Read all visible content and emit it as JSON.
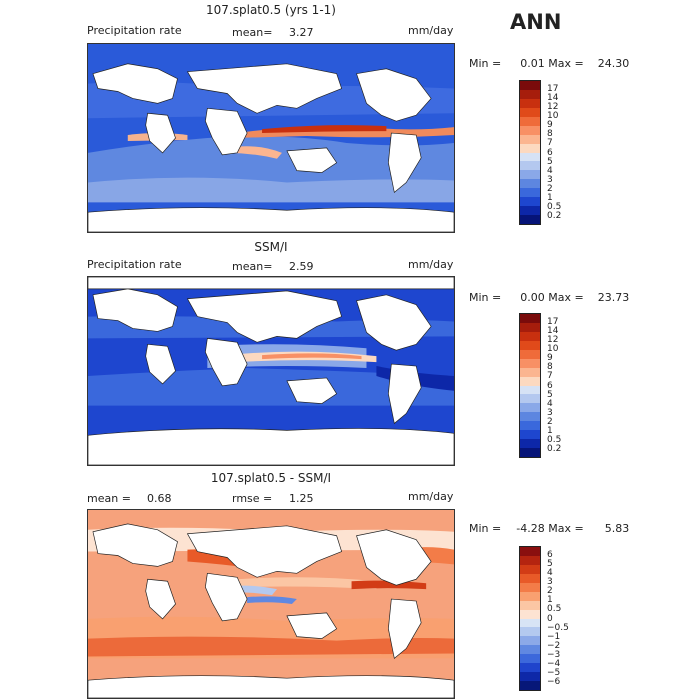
{
  "header": {
    "season": "ANN"
  },
  "panels": [
    {
      "title": "107.splat0.5 (yrs 1-1)",
      "left_label": "Precipitation rate",
      "mean_label": "mean=",
      "mean_value": "3.27",
      "units": "mm/day",
      "min_label": "Min =",
      "min_value": "0.01",
      "max_label": "Max =",
      "max_value": "24.30",
      "levels": [
        "17",
        "14",
        "12",
        "10",
        "9",
        "8",
        "7",
        "6",
        "5",
        "4",
        "3",
        "2",
        "1",
        "0.5",
        "0.2"
      ],
      "colors": [
        "#7a0b0b",
        "#a61d0c",
        "#c8300f",
        "#e04a1a",
        "#ef6b3a",
        "#f89065",
        "#fbb590",
        "#fcd9c0",
        "#d6e2f5",
        "#b4c8ef",
        "#8aa8e8",
        "#5d86e0",
        "#3a68dc",
        "#1e46cf",
        "#0d27a8",
        "#061478"
      ]
    },
    {
      "title": "SSM/I",
      "left_label": "Precipitation rate",
      "mean_label": "mean=",
      "mean_value": "2.59",
      "units": "mm/day",
      "min_label": "Min =",
      "min_value": "0.00",
      "max_label": "Max =",
      "max_value": "23.73",
      "levels": [
        "17",
        "14",
        "12",
        "10",
        "9",
        "8",
        "7",
        "6",
        "5",
        "4",
        "3",
        "2",
        "1",
        "0.5",
        "0.2"
      ],
      "colors": [
        "#7a0b0b",
        "#a61d0c",
        "#c8300f",
        "#e04a1a",
        "#ef6b3a",
        "#f89065",
        "#fbb590",
        "#fcd9c0",
        "#d6e2f5",
        "#b4c8ef",
        "#8aa8e8",
        "#5d86e0",
        "#3a68dc",
        "#1e46cf",
        "#0d27a8",
        "#061478"
      ]
    },
    {
      "title": "107.splat0.5 - SSM/I",
      "mean_label": "mean =",
      "mean_value": "0.68",
      "rmse_label": "rmse =",
      "rmse_value": "1.25",
      "units": "mm/day",
      "min_label": "Min =",
      "min_value": "-4.28",
      "max_label": "Max =",
      "max_value": "5.83",
      "levels": [
        "6",
        "5",
        "4",
        "3",
        "2",
        "1",
        "0.5",
        "0",
        "−0.5",
        "−1",
        "−2",
        "−3",
        "−4",
        "−5",
        "−6"
      ],
      "colors": [
        "#8a0f0f",
        "#b42410",
        "#d23c16",
        "#e85a28",
        "#f37c48",
        "#f9a070",
        "#fbc6a4",
        "#fde3d2",
        "#d8e4f5",
        "#b4c9ef",
        "#8ca9e8",
        "#6088e1",
        "#3c68db",
        "#1f44cc",
        "#0e28a8",
        "#071778"
      ]
    }
  ]
}
